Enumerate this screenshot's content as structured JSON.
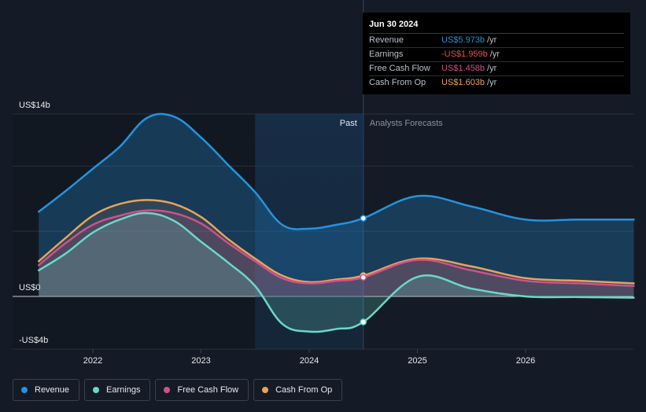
{
  "colors": {
    "background": "#151b26",
    "revenue": "#2394df",
    "earnings": "#6ad8c6",
    "free_cash_flow": "#d0518a",
    "cash_from_op": "#e7a35c",
    "past_shade": "#1c3550"
  },
  "tooltip": {
    "date": "Jun 30 2024",
    "rows": [
      {
        "name": "Revenue",
        "value": "US$5.973b",
        "unit": "/yr",
        "color": "#2394df"
      },
      {
        "name": "Earnings",
        "value": "-US$1.959b",
        "unit": "/yr",
        "color": "#e84a56"
      },
      {
        "name": "Free Cash Flow",
        "value": "US$1.458b",
        "unit": "/yr",
        "color": "#d0518a"
      },
      {
        "name": "Cash From Op",
        "value": "US$1.603b",
        "unit": "/yr",
        "color": "#e7a35c"
      }
    ]
  },
  "legend": [
    {
      "label": "Revenue",
      "color": "#2394df"
    },
    {
      "label": "Earnings",
      "color": "#6ad8c6"
    },
    {
      "label": "Free Cash Flow",
      "color": "#d0518a"
    },
    {
      "label": "Cash From Op",
      "color": "#e7a35c"
    }
  ],
  "chart_data": {
    "type": "line",
    "title": "",
    "xlabel": "",
    "ylabel": "",
    "ylim": [
      -4,
      14
    ],
    "xlim": [
      2021.5,
      2027.0
    ],
    "y_tick_labels": [
      "US$14b",
      "US$0",
      "-US$4b"
    ],
    "x_tick_labels": [
      "2022",
      "2023",
      "2024",
      "2025",
      "2026"
    ],
    "x_ticks": [
      2022,
      2023,
      2024,
      2025,
      2026
    ],
    "region_labels": {
      "past": "Past",
      "forecast": "Analysts Forecasts"
    },
    "past_highlight_start": 2023.5,
    "divider_x": 2024.5,
    "series": [
      {
        "name": "Revenue",
        "x": [
          2021.5,
          2021.75,
          2022.0,
          2022.25,
          2022.5,
          2022.75,
          2023.0,
          2023.25,
          2023.5,
          2023.75,
          2024.0,
          2024.25,
          2024.5,
          2025.0,
          2025.5,
          2026.0,
          2026.5,
          2027.0
        ],
        "values": [
          6.5,
          8.1,
          9.8,
          11.5,
          13.7,
          13.8,
          12.2,
          10.1,
          8.0,
          5.5,
          5.2,
          5.5,
          6.0,
          7.7,
          6.9,
          5.9,
          5.9,
          5.9
        ]
      },
      {
        "name": "Earnings",
        "x": [
          2021.5,
          2021.75,
          2022.0,
          2022.25,
          2022.5,
          2022.75,
          2023.0,
          2023.25,
          2023.5,
          2023.75,
          2024.0,
          2024.25,
          2024.5,
          2025.0,
          2025.5,
          2026.0,
          2026.5,
          2027.0
        ],
        "values": [
          2.0,
          3.3,
          4.9,
          5.9,
          6.4,
          5.8,
          4.2,
          2.6,
          0.8,
          -2.1,
          -2.7,
          -2.5,
          -1.96,
          1.5,
          0.6,
          0.0,
          -0.05,
          -0.1
        ]
      },
      {
        "name": "Free Cash Flow",
        "x": [
          2021.5,
          2021.75,
          2022.0,
          2022.25,
          2022.5,
          2022.75,
          2023.0,
          2023.25,
          2023.5,
          2023.75,
          2024.0,
          2024.25,
          2024.5,
          2025.0,
          2025.5,
          2026.0,
          2026.5,
          2027.0
        ],
        "values": [
          2.4,
          4.1,
          5.5,
          6.2,
          6.6,
          6.4,
          5.6,
          4.1,
          2.7,
          1.4,
          1.0,
          1.2,
          1.46,
          2.8,
          2.0,
          1.2,
          1.0,
          0.8
        ]
      },
      {
        "name": "Cash From Op",
        "x": [
          2021.5,
          2021.75,
          2022.0,
          2022.25,
          2022.5,
          2022.75,
          2023.0,
          2023.25,
          2023.5,
          2023.75,
          2024.0,
          2024.25,
          2024.5,
          2025.0,
          2025.5,
          2026.0,
          2026.5,
          2027.0
        ],
        "values": [
          2.7,
          4.5,
          6.2,
          7.1,
          7.4,
          7.1,
          6.1,
          4.4,
          2.9,
          1.6,
          1.1,
          1.3,
          1.6,
          2.9,
          2.3,
          1.4,
          1.2,
          1.0
        ]
      }
    ]
  }
}
